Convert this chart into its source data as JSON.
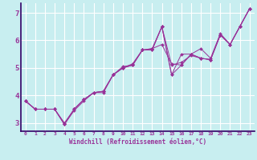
{
  "title": "",
  "xlabel": "Windchill (Refroidissement éolien,°C)",
  "ylabel": "",
  "background_color": "#c8eef0",
  "line_color": "#993399",
  "spine_color": "#330066",
  "grid_color": "#ffffff",
  "axis_label_color": "#993399",
  "tick_color": "#993399",
  "xlim": [
    -0.5,
    23.5
  ],
  "ylim": [
    2.7,
    7.35
  ],
  "yticks": [
    3,
    4,
    5,
    6,
    7
  ],
  "xticks": [
    0,
    1,
    2,
    3,
    4,
    5,
    6,
    7,
    8,
    9,
    10,
    11,
    12,
    13,
    14,
    15,
    16,
    17,
    18,
    19,
    20,
    21,
    22,
    23
  ],
  "series": [
    [
      3.8,
      3.5,
      3.5,
      3.5,
      2.95,
      3.45,
      3.8,
      4.1,
      4.1,
      4.75,
      5.0,
      5.1,
      5.65,
      5.65,
      6.5,
      5.1,
      5.2,
      5.45,
      5.35,
      5.3,
      6.2,
      5.85,
      6.5,
      7.15
    ],
    [
      3.8,
      3.5,
      3.5,
      3.5,
      3.0,
      3.5,
      3.85,
      4.1,
      4.15,
      4.75,
      5.0,
      5.1,
      5.65,
      5.7,
      5.85,
      5.15,
      5.1,
      5.5,
      5.35,
      5.3,
      6.2,
      5.85,
      6.5,
      7.15
    ],
    [
      3.8,
      3.5,
      3.5,
      3.5,
      2.95,
      3.5,
      3.85,
      4.1,
      4.15,
      4.75,
      5.0,
      5.15,
      5.65,
      5.7,
      6.5,
      4.75,
      5.1,
      5.5,
      5.35,
      5.3,
      6.2,
      5.85,
      6.5,
      7.15
    ],
    [
      3.8,
      3.5,
      3.5,
      3.5,
      2.95,
      3.5,
      3.85,
      4.1,
      4.15,
      4.75,
      5.05,
      5.1,
      5.65,
      5.65,
      6.5,
      4.75,
      5.5,
      5.5,
      5.7,
      5.35,
      6.25,
      5.85,
      6.5,
      7.15
    ]
  ]
}
